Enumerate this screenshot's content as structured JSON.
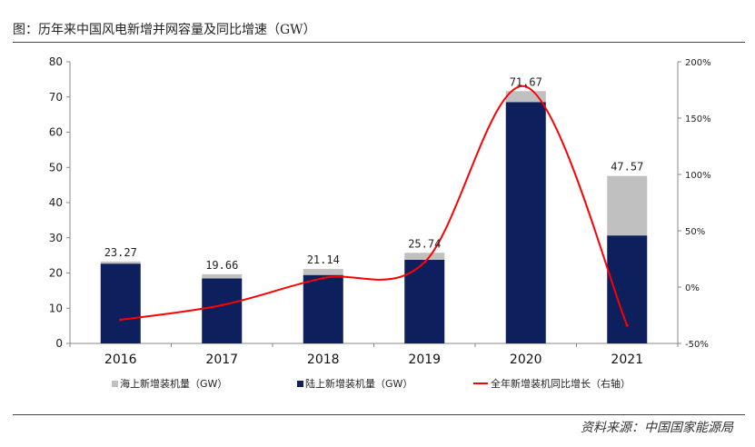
{
  "figure": {
    "title": "图：历年来中国风电新增并网容量及同比增速（GW）",
    "source": "资料来源：中国国家能源局"
  },
  "colors": {
    "offshore": "#c0c0c0",
    "onshore": "#0d1f5c",
    "growth": "#ff0000"
  },
  "chart_data": {
    "type": "bar",
    "stacked": true,
    "categories": [
      "2016",
      "2017",
      "2018",
      "2019",
      "2020",
      "2021"
    ],
    "series": [
      {
        "name": "海上新增装机量（GW）",
        "values": [
          0.6,
          1.2,
          1.7,
          2.0,
          3.1,
          16.9
        ]
      },
      {
        "name": "陆上新增装机量（GW）",
        "values": [
          22.67,
          18.46,
          19.44,
          23.74,
          68.57,
          30.67
        ]
      }
    ],
    "totals": [
      "23.27",
      "19.66",
      "21.14",
      "25.74",
      "71.67",
      "47.57"
    ],
    "line": {
      "name": "全年新增装机同比增长（右轴）",
      "values": [
        -0.29,
        -0.16,
        0.08,
        0.22,
        1.78,
        -0.34
      ]
    },
    "yticks_left": [
      "0",
      "10",
      "20",
      "30",
      "40",
      "50",
      "60",
      "70",
      "80"
    ],
    "yticks_right": [
      "-50%",
      "0%",
      "50%",
      "100%",
      "150%",
      "200%"
    ],
    "ylim": [
      0,
      80
    ],
    "y2lim": [
      -0.5,
      2.0
    ],
    "legend_position": "bottom"
  }
}
